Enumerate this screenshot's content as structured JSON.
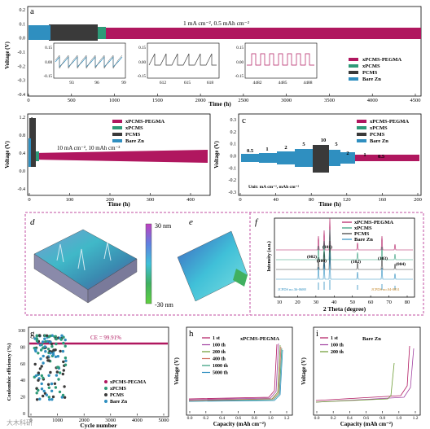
{
  "panel_a": {
    "label": "a",
    "annotation": "1 mA cm⁻², 0.5 mAh cm⁻²",
    "xlabel": "Time (h)",
    "ylabel": "Voltage (V)",
    "xticks": [
      "0",
      "500",
      "1000",
      "1500",
      "2000",
      "2500",
      "3000",
      "3500",
      "4000",
      "4500"
    ],
    "yticks": [
      "0.2",
      "0.1",
      "0.0",
      "-0.1",
      "-0.2",
      "-0.3",
      "-0.4"
    ],
    "legend": [
      "xPCMS-PEGMA",
      "xPCMS",
      "PCMS",
      "Bare Zn"
    ],
    "inset1": {
      "yticks": [
        "0.15",
        "0.00",
        "-0.15"
      ],
      "xticks": [
        "93",
        "96",
        "99"
      ]
    },
    "inset2": {
      "yticks": [
        "0.15",
        "0.00",
        "-0.15"
      ],
      "xticks": [
        "612",
        "615",
        "618"
      ]
    },
    "inset3": {
      "yticks": [
        "0.15",
        "0.00",
        "-0.15"
      ],
      "xticks": [
        "4482",
        "4485",
        "4488"
      ]
    }
  },
  "panel_b": {
    "label": "b",
    "annotation": "10 mA cm⁻², 10 mAh cm⁻²",
    "xlabel": "Time (h)",
    "ylabel": "Voltage (V)",
    "xticks": [
      "0",
      "100",
      "200",
      "300",
      "400"
    ],
    "yticks": [
      "1.2",
      "0.8",
      "0.4",
      "0.0",
      "-0.4"
    ],
    "legend": [
      "xPCMS-PEGMA",
      "xPCMS",
      "PCMS",
      "Bare Zn"
    ]
  },
  "panel_c": {
    "label": "c",
    "xlabel": "Time (h)",
    "ylabel": "Voltage (V)",
    "xticks": [
      "0",
      "40",
      "80",
      "120",
      "160",
      "200"
    ],
    "yticks": [
      "0.3",
      "0.2",
      "0.1",
      "0.0",
      "-0.1",
      "-0.2",
      "-0.3"
    ],
    "legend": [
      "xPCMS-PEGMA",
      "xPCMS",
      "PCMS",
      "Bare Zn"
    ],
    "rates": [
      "0.5",
      "1",
      "2",
      "5",
      "10",
      "5",
      "2",
      "1",
      "0.5"
    ],
    "unit": "Unit: mA cm⁻², mAh cm⁻²"
  },
  "panel_d": {
    "label": "d",
    "colorbar_top": "30 nm",
    "colorbar_bottom": "-30 nm"
  },
  "panel_e": {
    "label": "e"
  },
  "panel_f": {
    "label": "f",
    "xlabel": "2 Theta (degree)",
    "ylabel": "Intensity (a.u.)",
    "xticks": [
      "10",
      "20",
      "30",
      "40",
      "50",
      "60",
      "70",
      "80"
    ],
    "legend": [
      "xPCMS-PEGMA",
      "xPCMS",
      "PCMS",
      "Bare Zn"
    ],
    "peaks": [
      "(002)",
      "(100)",
      "(101)",
      "(102)",
      "(103)",
      "(004)"
    ],
    "jcpds1": "JCPDS no.36-0688",
    "jcpds2": "JCPDS no.04-0831"
  },
  "panel_g": {
    "label": "g",
    "ce": "CE = 99.91%",
    "xlabel": "Cycle number",
    "ylabel": "Coulombic efficiency (%)",
    "xticks": [
      "0",
      "1000",
      "2000",
      "3000",
      "4000",
      "5000"
    ],
    "yticks": [
      "100",
      "80",
      "60",
      "40",
      "20",
      "0"
    ],
    "legend": [
      "xPCMS-PEGMA",
      "xPCMS",
      "PCMS",
      "Bare Zn"
    ]
  },
  "panel_h": {
    "label": "h",
    "title": "xPCMS-PEGMA",
    "xlabel": "Capacity (mAh cm⁻²)",
    "ylabel": "Voltage (V)",
    "xticks": [
      "0.0",
      "0.2",
      "0.4",
      "0.6",
      "0.8",
      "1.0",
      "1.2"
    ],
    "legend": [
      "1 st",
      "100 th",
      "200 th",
      "400 th",
      "1000 th",
      "5000 th"
    ]
  },
  "panel_i": {
    "label": "i",
    "title": "Bare Zn",
    "xlabel": "Capacity (mAh cm⁻²)",
    "ylabel": "Voltage (V)",
    "xticks": [
      "0.0",
      "0.2",
      "0.4",
      "0.6",
      "0.8",
      "1.0",
      "1.2"
    ],
    "legend": [
      "1 st",
      "100 th",
      "200 th"
    ]
  },
  "watermark": "大木科研",
  "colors": {
    "pegma": "#b0175f",
    "xpcms": "#2e9a78",
    "pcms": "#3a3a3a",
    "barezn": "#2f8fc0",
    "border": "#c04da0"
  }
}
